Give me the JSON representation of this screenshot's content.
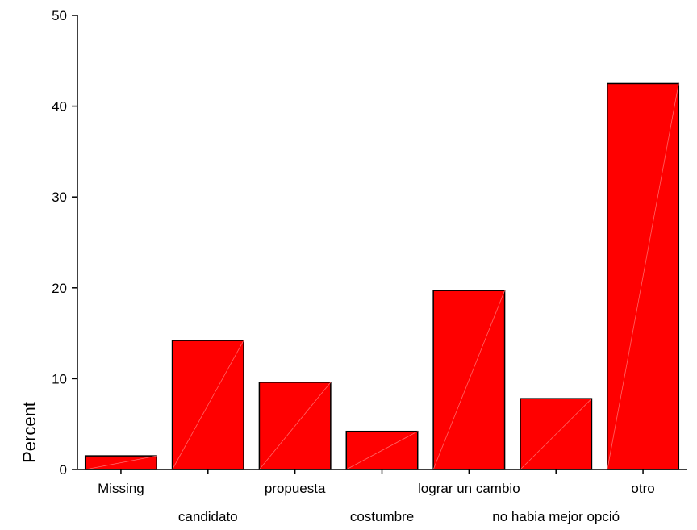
{
  "chart_data": {
    "type": "bar",
    "title": "",
    "xlabel": "",
    "ylabel": "Percent",
    "ylim": [
      0,
      50
    ],
    "yticks": [
      0,
      10,
      20,
      30,
      40,
      50
    ],
    "categories": [
      "Missing",
      "candidato",
      "propuesta",
      "costumbre",
      "lograr un cambio",
      "no habia mejor opció",
      "otro"
    ],
    "values": [
      1.5,
      14.2,
      9.6,
      4.2,
      19.7,
      7.8,
      42.5
    ],
    "grid": false,
    "legend": "none",
    "colors": {
      "bar_fill": "#ff0000",
      "bar_stroke": "#000000",
      "bar_highlight": "#ff6666",
      "axis": "#000000"
    }
  }
}
